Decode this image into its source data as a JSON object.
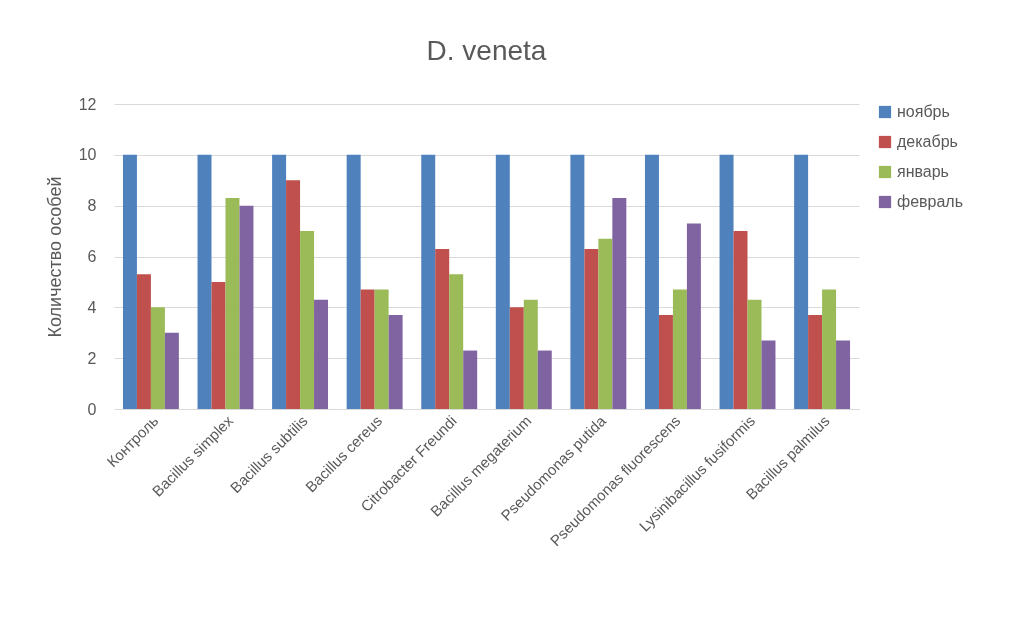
{
  "chart_data": {
    "type": "bar",
    "title": "D. veneta",
    "ylabel": "Количество особей",
    "categories": [
      "Контроль",
      "Bacillus simplex",
      "Bacillus subtilis",
      "Bacillus cereus",
      "Citrobacter Freundi",
      "Bacillus megaterium",
      "Pseudomonas putida",
      "Pseudomonas fluorescens",
      "Lysinibacillus fusiformis",
      "Bacillus palmilus"
    ],
    "series": [
      {
        "name": "ноябрь",
        "color": "#4f81bd",
        "values": [
          10,
          10,
          10,
          10,
          10,
          10,
          10,
          10,
          10,
          10
        ]
      },
      {
        "name": "декабрь",
        "color": "#c0504d",
        "values": [
          5.3,
          5,
          9,
          4.7,
          6.3,
          4,
          6.3,
          3.7,
          7,
          3.7
        ]
      },
      {
        "name": "январь",
        "color": "#9bbb59",
        "values": [
          4,
          8.3,
          7,
          4.7,
          5.3,
          4.3,
          6.7,
          4.7,
          4.3,
          4.7
        ]
      },
      {
        "name": "февраль",
        "color": "#8064a2",
        "values": [
          3,
          8,
          4.3,
          3.7,
          2.3,
          2.3,
          8.3,
          7.3,
          2.7,
          2.7
        ]
      }
    ],
    "ylim": [
      0,
      12
    ],
    "yticks": [
      0,
      2,
      4,
      6,
      8,
      10,
      12
    ],
    "grid": "y",
    "legend": "right"
  }
}
